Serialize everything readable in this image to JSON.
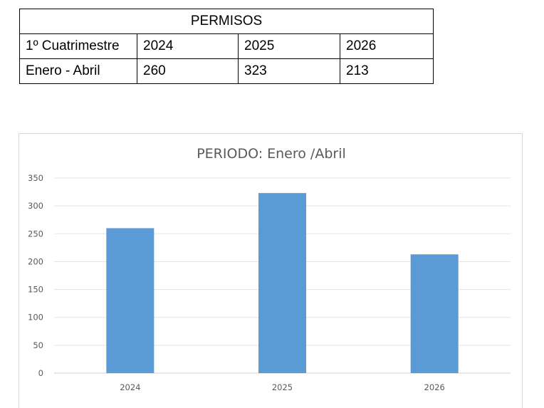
{
  "table": {
    "title": "PERMISOS",
    "header": [
      "1º Cuatrimestre",
      "2024",
      "2025",
      "2026"
    ],
    "row": [
      "Enero - Abril",
      "260",
      "323",
      "213"
    ]
  },
  "chart_data": {
    "type": "bar",
    "title": "PERIODO: Enero /Abril",
    "categories": [
      "2024",
      "2025",
      "2026"
    ],
    "series": [
      {
        "values": [
          260,
          323,
          213
        ]
      }
    ],
    "ylim": [
      0,
      350
    ],
    "yticks": [
      0,
      50,
      100,
      150,
      200,
      250,
      300,
      350
    ],
    "grid": true,
    "colors": {
      "bar": "#5b9bd5"
    }
  }
}
